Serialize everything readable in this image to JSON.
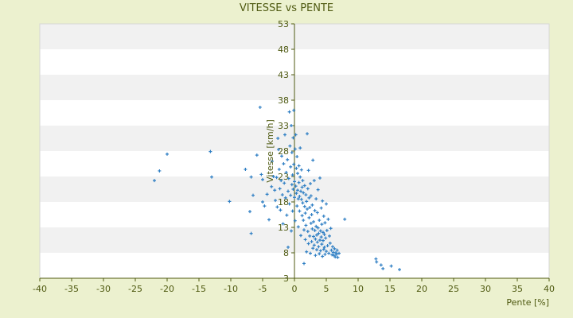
{
  "chart_data": {
    "type": "scatter",
    "title": "VITESSE vs PENTE",
    "xlabel": "Pente [%]",
    "ylabel": "Vitesse [km/h]",
    "xlim": [
      -40,
      40
    ],
    "ylim": [
      3,
      53
    ],
    "x_ticks": [
      -40,
      -35,
      -30,
      -25,
      -20,
      -15,
      -10,
      -5,
      0,
      5,
      10,
      15,
      20,
      25,
      30,
      35,
      40
    ],
    "y_ticks": [
      3,
      8,
      13,
      18,
      23,
      28,
      33,
      38,
      43,
      48,
      53
    ],
    "grid": "horizontal bands",
    "legend": "none",
    "colors": {
      "background": "#ecf1cf",
      "plot_bg": "#ffffff",
      "band": "#f1f1f1",
      "point": "#2f7fc4",
      "text": "#4f5a12",
      "axis": "#4f5a12"
    },
    "series": [
      {
        "marker": "plus",
        "points": [
          [
            -22,
            22.2
          ],
          [
            -21.2,
            24.1
          ],
          [
            -20,
            27.4
          ],
          [
            -13.2,
            27.9
          ],
          [
            -13,
            22.9
          ],
          [
            -10.2,
            18.1
          ],
          [
            -7.7,
            24.4
          ],
          [
            -7,
            16.1
          ],
          [
            -6.8,
            11.8
          ],
          [
            -6.8,
            22.9
          ],
          [
            -6.5,
            19.3
          ],
          [
            -5.9,
            27.2
          ],
          [
            -5.4,
            36.6
          ],
          [
            -5.2,
            23.4
          ],
          [
            -5,
            22.4
          ],
          [
            -5,
            18
          ],
          [
            -4.7,
            17.2
          ],
          [
            -4.3,
            19.5
          ],
          [
            -4,
            14.5
          ],
          [
            -3.6,
            21
          ],
          [
            -3.5,
            26
          ],
          [
            -3.3,
            23
          ],
          [
            -3.1,
            20.3
          ],
          [
            -3,
            18.3
          ],
          [
            -2.8,
            22.8
          ],
          [
            -2.7,
            17
          ],
          [
            -2.6,
            30.5
          ],
          [
            -2.5,
            28.3
          ],
          [
            -2.4,
            24.4
          ],
          [
            -2.3,
            20.6
          ],
          [
            -2.2,
            16.4
          ],
          [
            -2.1,
            22.2
          ],
          [
            -2,
            27
          ],
          [
            -1.9,
            19.4
          ],
          [
            -1.8,
            13.7
          ],
          [
            -1.7,
            25.5
          ],
          [
            -1.6,
            21.7
          ],
          [
            -1.5,
            31.2
          ],
          [
            -1.4,
            18.8
          ],
          [
            -1.3,
            23.8
          ],
          [
            -1.2,
            15.4
          ],
          [
            -1.1,
            26.3
          ],
          [
            -1,
            20.1
          ],
          [
            -1,
            9.1
          ],
          [
            -0.9,
            22.6
          ],
          [
            -0.8,
            35.7
          ],
          [
            -0.8,
            17.6
          ],
          [
            -0.7,
            29
          ],
          [
            -0.6,
            24.9
          ],
          [
            -0.6,
            19.3
          ],
          [
            -0.5,
            33
          ],
          [
            -0.5,
            12.3
          ],
          [
            -0.4,
            21.4
          ],
          [
            -0.4,
            27.7
          ],
          [
            -0.3,
            16.2
          ],
          [
            -0.3,
            23.3
          ],
          [
            -0.2,
            30.6
          ],
          [
            -0.2,
            20.5
          ],
          [
            -0.1,
            36
          ],
          [
            -0.1,
            25.4
          ],
          [
            0,
            18.9
          ],
          [
            0,
            22
          ],
          [
            0.1,
            28.4
          ],
          [
            0.1,
            14.3
          ],
          [
            0.2,
            31.2
          ],
          [
            0.2,
            21.1
          ],
          [
            0.3,
            24.6
          ],
          [
            0.3,
            19.7
          ],
          [
            0.4,
            17.2
          ],
          [
            0.4,
            26.9
          ],
          [
            0.5,
            20.3
          ],
          [
            0.5,
            23.6
          ],
          [
            0.6,
            18.6
          ],
          [
            0.6,
            13.1
          ],
          [
            0.7,
            21.8
          ],
          [
            0.7,
            25.1
          ],
          [
            0.8,
            19.1
          ],
          [
            0.8,
            16.2
          ],
          [
            0.9,
            22.9
          ],
          [
            0.9,
            28.6
          ],
          [
            1,
            20.1
          ],
          [
            1,
            11.4
          ],
          [
            1.1,
            18.5
          ],
          [
            1.1,
            24.3
          ],
          [
            1.2,
            15.3
          ],
          [
            1.2,
            20.9
          ],
          [
            1.3,
            17.8
          ],
          [
            1.3,
            22.2
          ],
          [
            1.4,
            14.4
          ],
          [
            1.4,
            19.8
          ],
          [
            1.5,
            12.5
          ],
          [
            1.5,
            5.9
          ],
          [
            1.6,
            17.1
          ],
          [
            1.6,
            21.2
          ],
          [
            1.7,
            10.6
          ],
          [
            1.7,
            15.8
          ],
          [
            1.8,
            19.4
          ],
          [
            1.8,
            13.4
          ],
          [
            1.9,
            18.1
          ],
          [
            1.9,
            8.2
          ],
          [
            2,
            31.4
          ],
          [
            2,
            16.6
          ],
          [
            2.1,
            12.2
          ],
          [
            2.1,
            20.6
          ],
          [
            2.2,
            24.2
          ],
          [
            2.2,
            9.8
          ],
          [
            2.3,
            14.9
          ],
          [
            2.3,
            18.8
          ],
          [
            2.4,
            11.3
          ],
          [
            2.4,
            16.9
          ],
          [
            2.5,
            21.6
          ],
          [
            2.5,
            7.9
          ],
          [
            2.6,
            13.8
          ],
          [
            2.6,
            19.2
          ],
          [
            2.7,
            10.2
          ],
          [
            2.7,
            15.5
          ],
          [
            2.8,
            12.7
          ],
          [
            2.8,
            17.4
          ],
          [
            2.9,
            8.9
          ],
          [
            2.9,
            26.2
          ],
          [
            3,
            14.1
          ],
          [
            3,
            11.2
          ],
          [
            3.1,
            22.2
          ],
          [
            3.1,
            9.5
          ],
          [
            3.2,
            16.3
          ],
          [
            3.2,
            12.4
          ],
          [
            3.3,
            10.7
          ],
          [
            3.3,
            7.5
          ],
          [
            3.4,
            18.6
          ],
          [
            3.4,
            13.2
          ],
          [
            3.5,
            11.5
          ],
          [
            3.5,
            8.6
          ],
          [
            3.6,
            15.9
          ],
          [
            3.6,
            10.1
          ],
          [
            3.7,
            12.9
          ],
          [
            3.7,
            20.4
          ],
          [
            3.8,
            9.2
          ],
          [
            3.8,
            11.8
          ],
          [
            3.9,
            14.4
          ],
          [
            3.9,
            7.8
          ],
          [
            4,
            22.7
          ],
          [
            4,
            10.5
          ],
          [
            4.1,
            12.3
          ],
          [
            4.1,
            8.4
          ],
          [
            4.2,
            16.8
          ],
          [
            4.2,
            11.1
          ],
          [
            4.3,
            9.7
          ],
          [
            4.3,
            13.6
          ],
          [
            4.4,
            7.3
          ],
          [
            4.4,
            18.2
          ],
          [
            4.5,
            10.4
          ],
          [
            4.5,
            12
          ],
          [
            4.6,
            8.7
          ],
          [
            4.6,
            15.2
          ],
          [
            4.7,
            11.6
          ],
          [
            4.7,
            9.1
          ],
          [
            4.8,
            13.9
          ],
          [
            4.8,
            7.7
          ],
          [
            4.9,
            10.9
          ],
          [
            5,
            17.6
          ],
          [
            5,
            8.3
          ],
          [
            5.1,
            12.4
          ],
          [
            5.2,
            9.4
          ],
          [
            5.3,
            14.6
          ],
          [
            5.4,
            7.9
          ],
          [
            5.5,
            11.3
          ],
          [
            5.6,
            9.9
          ],
          [
            5.7,
            12.8
          ],
          [
            5.8,
            8.5
          ],
          [
            5.9,
            7.6
          ],
          [
            6,
            9.2
          ],
          [
            6.1,
            8.1
          ],
          [
            6.2,
            7.5
          ],
          [
            6.3,
            8.8
          ],
          [
            6.4,
            7.2
          ],
          [
            6.5,
            8
          ],
          [
            6.6,
            7.7
          ],
          [
            6.7,
            8.5
          ],
          [
            6.8,
            7.1
          ],
          [
            7,
            7.9
          ],
          [
            7.9,
            14.6
          ],
          [
            12.8,
            6.8
          ],
          [
            12.9,
            6.2
          ],
          [
            13.6,
            5.6
          ],
          [
            13.9,
            4.9
          ],
          [
            15.2,
            5.4
          ],
          [
            16.5,
            4.7
          ]
        ]
      }
    ]
  }
}
